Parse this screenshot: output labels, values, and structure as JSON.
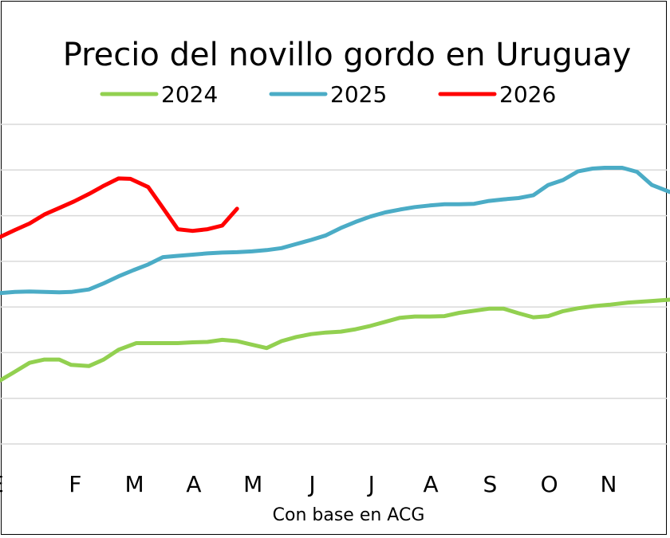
{
  "chart_data": {
    "type": "line",
    "title": "Precio del novillo gordo en Uruguay",
    "xlabel": "Con base en ACG",
    "ylabel": "",
    "categories": [
      "E",
      "F",
      "M",
      "A",
      "M",
      "J",
      "J",
      "A",
      "S",
      "O",
      "N"
    ],
    "x_range": [
      0,
      11.6
    ],
    "ylim": [
      0,
      7.8
    ],
    "grid": true,
    "legend": "top",
    "series": [
      {
        "name": "2024",
        "color": "#92D050",
        "x": [
          0.0,
          0.2,
          0.5,
          0.75,
          1.0,
          1.2,
          1.5,
          1.75,
          2.0,
          2.3,
          2.5,
          2.75,
          3.0,
          3.25,
          3.5,
          3.75,
          4.0,
          4.2,
          4.5,
          4.75,
          5.0,
          5.25,
          5.5,
          5.75,
          6.0,
          6.25,
          6.5,
          6.75,
          7.0,
          7.25,
          7.5,
          7.75,
          8.0,
          8.25,
          8.5,
          8.75,
          9.0,
          9.25,
          9.5,
          9.75,
          10.0,
          10.3,
          10.6,
          11.0,
          11.3,
          11.6
        ],
        "values": [
          1.55,
          1.72,
          1.98,
          2.06,
          2.06,
          1.93,
          1.9,
          2.06,
          2.3,
          2.46,
          2.46,
          2.46,
          2.46,
          2.48,
          2.49,
          2.54,
          2.51,
          2.44,
          2.34,
          2.51,
          2.61,
          2.68,
          2.72,
          2.74,
          2.8,
          2.88,
          2.98,
          3.08,
          3.11,
          3.11,
          3.12,
          3.2,
          3.25,
          3.3,
          3.3,
          3.19,
          3.09,
          3.12,
          3.24,
          3.31,
          3.36,
          3.4,
          3.45,
          3.49,
          3.52,
          3.55
        ]
      },
      {
        "name": "2025",
        "color": "#4BACC6",
        "x": [
          0.0,
          0.25,
          0.5,
          0.75,
          1.0,
          1.2,
          1.5,
          1.75,
          2.0,
          2.25,
          2.5,
          2.75,
          3.0,
          3.25,
          3.5,
          3.75,
          4.0,
          4.25,
          4.5,
          4.75,
          5.0,
          5.25,
          5.5,
          5.75,
          6.0,
          6.25,
          6.5,
          6.75,
          7.0,
          7.25,
          7.5,
          7.75,
          8.0,
          8.25,
          8.5,
          8.75,
          9.0,
          9.25,
          9.5,
          9.75,
          10.0,
          10.2,
          10.5,
          10.75,
          11.0,
          11.3,
          11.6
        ],
        "values": [
          3.68,
          3.71,
          3.72,
          3.71,
          3.7,
          3.71,
          3.77,
          3.92,
          4.09,
          4.24,
          4.38,
          4.56,
          4.59,
          4.62,
          4.65,
          4.67,
          4.68,
          4.7,
          4.73,
          4.78,
          4.88,
          4.98,
          5.09,
          5.27,
          5.42,
          5.55,
          5.65,
          5.72,
          5.78,
          5.82,
          5.85,
          5.85,
          5.86,
          5.93,
          5.97,
          6.0,
          6.07,
          6.32,
          6.44,
          6.65,
          6.72,
          6.74,
          6.74,
          6.64,
          6.32,
          6.15,
          6.1
        ]
      },
      {
        "name": "2026",
        "color": "#FF0000",
        "x": [
          0.0,
          0.25,
          0.5,
          0.75,
          1.0,
          1.25,
          1.5,
          1.75,
          2.0,
          2.2,
          2.5,
          2.75,
          3.0,
          3.25,
          3.5,
          3.75,
          4.0
        ],
        "values": [
          5.05,
          5.22,
          5.38,
          5.6,
          5.76,
          5.92,
          6.1,
          6.3,
          6.48,
          6.47,
          6.27,
          5.76,
          5.24,
          5.2,
          5.24,
          5.33,
          5.74
        ]
      }
    ]
  }
}
